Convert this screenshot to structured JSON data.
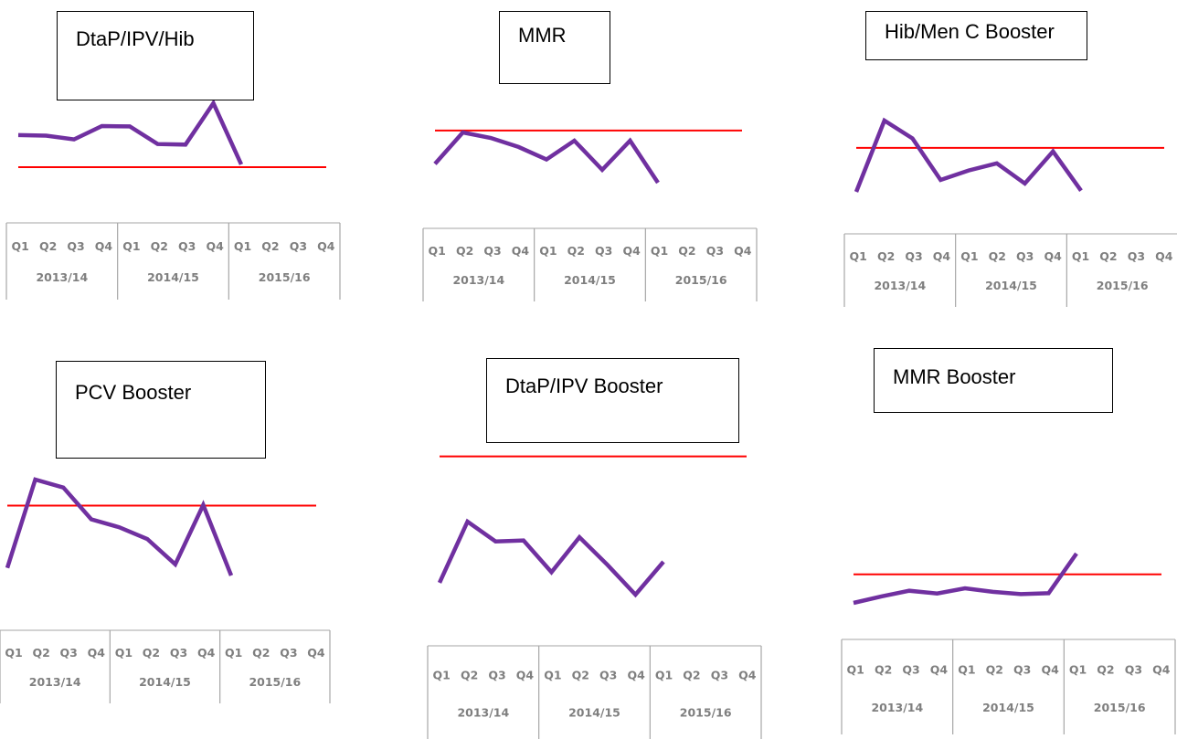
{
  "chart_data": [
    {
      "type": "line",
      "title": "DtaP/IPV/Hib",
      "categories": [
        "Q1",
        "Q2",
        "Q3",
        "Q4",
        "Q1",
        "Q2",
        "Q3",
        "Q4",
        "Q1",
        "Q2",
        "Q3",
        "Q4"
      ],
      "groups": [
        "2013/14",
        "2014/15",
        "2015/16"
      ],
      "series": [
        {
          "values": [
            80.4,
            80.2,
            79,
            83.3,
            83.2,
            77.5,
            77.3,
            90.7,
            70.9,
            null,
            null,
            null
          ],
          "color": "#7030a0"
        },
        {
          "values": [
            70,
            70,
            70,
            70,
            70,
            70,
            70,
            70,
            70,
            70,
            70,
            70
          ],
          "color": "#ff0000"
        }
      ],
      "ylim": [
        60,
        100
      ]
    },
    {
      "type": "line",
      "title": "MMR",
      "categories": [
        "Q1",
        "Q2",
        "Q3",
        "Q4",
        "Q1",
        "Q2",
        "Q3",
        "Q4",
        "Q1",
        "Q2",
        "Q3",
        "Q4"
      ],
      "groups": [
        "2013/14",
        "2014/15",
        "2015/16"
      ],
      "series": [
        {
          "values": [
            80.7,
            95.6,
            93,
            88.7,
            82.8,
            91.7,
            77.9,
            91.7,
            71.8,
            null,
            null,
            null
          ],
          "color": "#7030a0"
        },
        {
          "values": [
            96.5,
            96.5,
            96.5,
            96.5,
            96.5,
            96.5,
            96.5,
            96.5,
            96.5,
            96.5,
            96.5,
            96.5
          ],
          "color": "#ff0000"
        }
      ],
      "ylim": [
        60,
        110
      ]
    },
    {
      "type": "line",
      "title": "Hib/Men C Booster",
      "categories": [
        "Q1",
        "Q2",
        "Q3",
        "Q4",
        "Q1",
        "Q2",
        "Q3",
        "Q4",
        "Q1",
        "Q2",
        "Q3",
        "Q4"
      ],
      "groups": [
        "2013/14",
        "2014/15",
        "2015/16"
      ],
      "series": [
        {
          "values": [
            70,
            100,
            92.5,
            75,
            79,
            82,
            73.5,
            87,
            70.5,
            null,
            null,
            null
          ],
          "color": "#7030a0"
        },
        {
          "values": [
            88.5,
            88.5,
            88.5,
            88.5,
            88.5,
            88.5,
            88.5,
            88.5,
            88.5,
            88.5,
            88.5,
            88.5
          ],
          "color": "#ff0000"
        }
      ],
      "ylim": [
        60,
        110
      ]
    },
    {
      "type": "line",
      "title": "PCV Booster",
      "categories": [
        "Q1",
        "Q2",
        "Q3",
        "Q4",
        "Q1",
        "Q2",
        "Q3",
        "Q4",
        "Q1",
        "Q2",
        "Q3",
        "Q4"
      ],
      "groups": [
        "2013/14",
        "2014/15",
        "2015/16"
      ],
      "series": [
        {
          "values": [
            70.2,
            98,
            95.5,
            85.5,
            83,
            79.3,
            71.3,
            90,
            67.8,
            null,
            null,
            null
          ],
          "color": "#7030a0"
        },
        {
          "values": [
            89.8,
            89.8,
            89.8,
            89.8,
            89.8,
            89.8,
            89.8,
            89.8,
            89.8,
            89.8,
            89.8,
            89.8
          ],
          "color": "#ff0000"
        }
      ],
      "ylim": [
        60,
        110
      ]
    },
    {
      "type": "line",
      "title": "DtaP/IPV Booster",
      "categories": [
        "Q1",
        "Q2",
        "Q3",
        "Q4",
        "Q1",
        "Q2",
        "Q3",
        "Q4",
        "Q1",
        "Q2",
        "Q3",
        "Q4"
      ],
      "groups": [
        "2013/14",
        "2014/15",
        "2015/16"
      ],
      "series": [
        {
          "values": [
            70.8,
            82.5,
            78.7,
            78.9,
            72.8,
            79.5,
            74.2,
            68.5,
            74.8,
            null,
            null,
            null
          ],
          "color": "#7030a0"
        },
        {
          "values": [
            95,
            95,
            95,
            95,
            95,
            95,
            95,
            95,
            95,
            95,
            95,
            95
          ],
          "color": "#ff0000"
        }
      ],
      "ylim": [
        60,
        110
      ]
    },
    {
      "type": "line",
      "title": "MMR Booster",
      "categories": [
        "Q1",
        "Q2",
        "Q3",
        "Q4",
        "Q1",
        "Q2",
        "Q3",
        "Q4",
        "Q1",
        "Q2",
        "Q3",
        "Q4"
      ],
      "groups": [
        "2013/14",
        "2014/15",
        "2015/16"
      ],
      "series": [
        {
          "values": [
            70,
            74.3,
            78,
            76.2,
            79.6,
            77.3,
            75.8,
            76.4,
            102.5,
            null,
            null,
            null
          ],
          "color": "#7030a0"
        },
        {
          "values": [
            88.8,
            88.8,
            88.8,
            88.8,
            88.8,
            88.8,
            88.8,
            88.8,
            88.8,
            88.8,
            88.8,
            88.8
          ],
          "color": "#ff0000"
        }
      ],
      "ylim": [
        60,
        110
      ]
    }
  ]
}
